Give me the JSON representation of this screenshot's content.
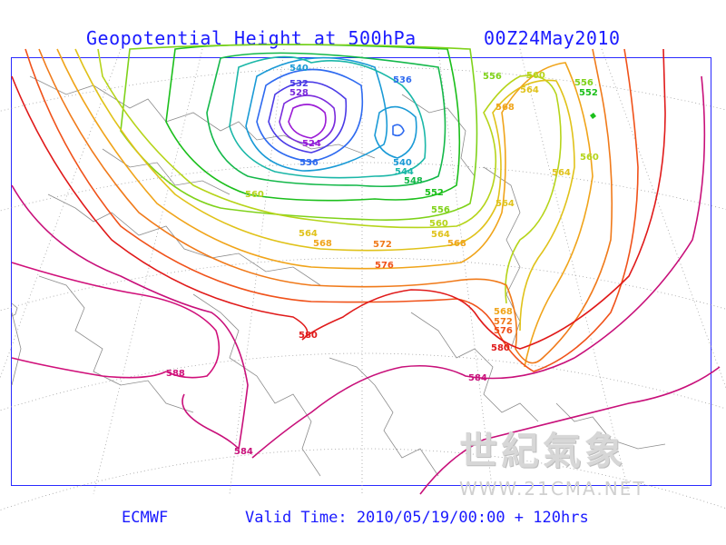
{
  "header": {
    "title": "Geopotential Height at 500hPa",
    "date": "00Z24May2010"
  },
  "footer": {
    "model": "ECMWF",
    "valid_time": "Valid Time: 2010/05/19/00:00 + 120hrs"
  },
  "watermark": {
    "logo_text": "世紀氣象",
    "url": "WWW.21CMA.NET"
  },
  "colors": {
    "title_blue": "#1a1aff",
    "frame_blue": "#2a2aff",
    "map_lines": "#8c8c8c",
    "grid": "#9a9a9a"
  },
  "contours": [
    {
      "value": "524",
      "color": "#9b1bd6"
    },
    {
      "value": "528",
      "color": "#7a2bdc"
    },
    {
      "value": "532",
      "color": "#4b3be6"
    },
    {
      "value": "536",
      "color": "#2f6bf0"
    },
    {
      "value": "540",
      "color": "#1a9ad6"
    },
    {
      "value": "544",
      "color": "#1bb7a8"
    },
    {
      "value": "548",
      "color": "#14b84a"
    },
    {
      "value": "552",
      "color": "#1cbf1c"
    },
    {
      "value": "556",
      "color": "#7fd21a"
    },
    {
      "value": "560",
      "color": "#b6d41a"
    },
    {
      "value": "564",
      "color": "#e0c21a"
    },
    {
      "value": "568",
      "color": "#f0a41a"
    },
    {
      "value": "572",
      "color": "#f07a1a"
    },
    {
      "value": "576",
      "color": "#f0521a"
    },
    {
      "value": "580",
      "color": "#e01a1a"
    },
    {
      "value": "584",
      "color": "#c8107a"
    },
    {
      "value": "588",
      "color": "#d0107a"
    }
  ]
}
